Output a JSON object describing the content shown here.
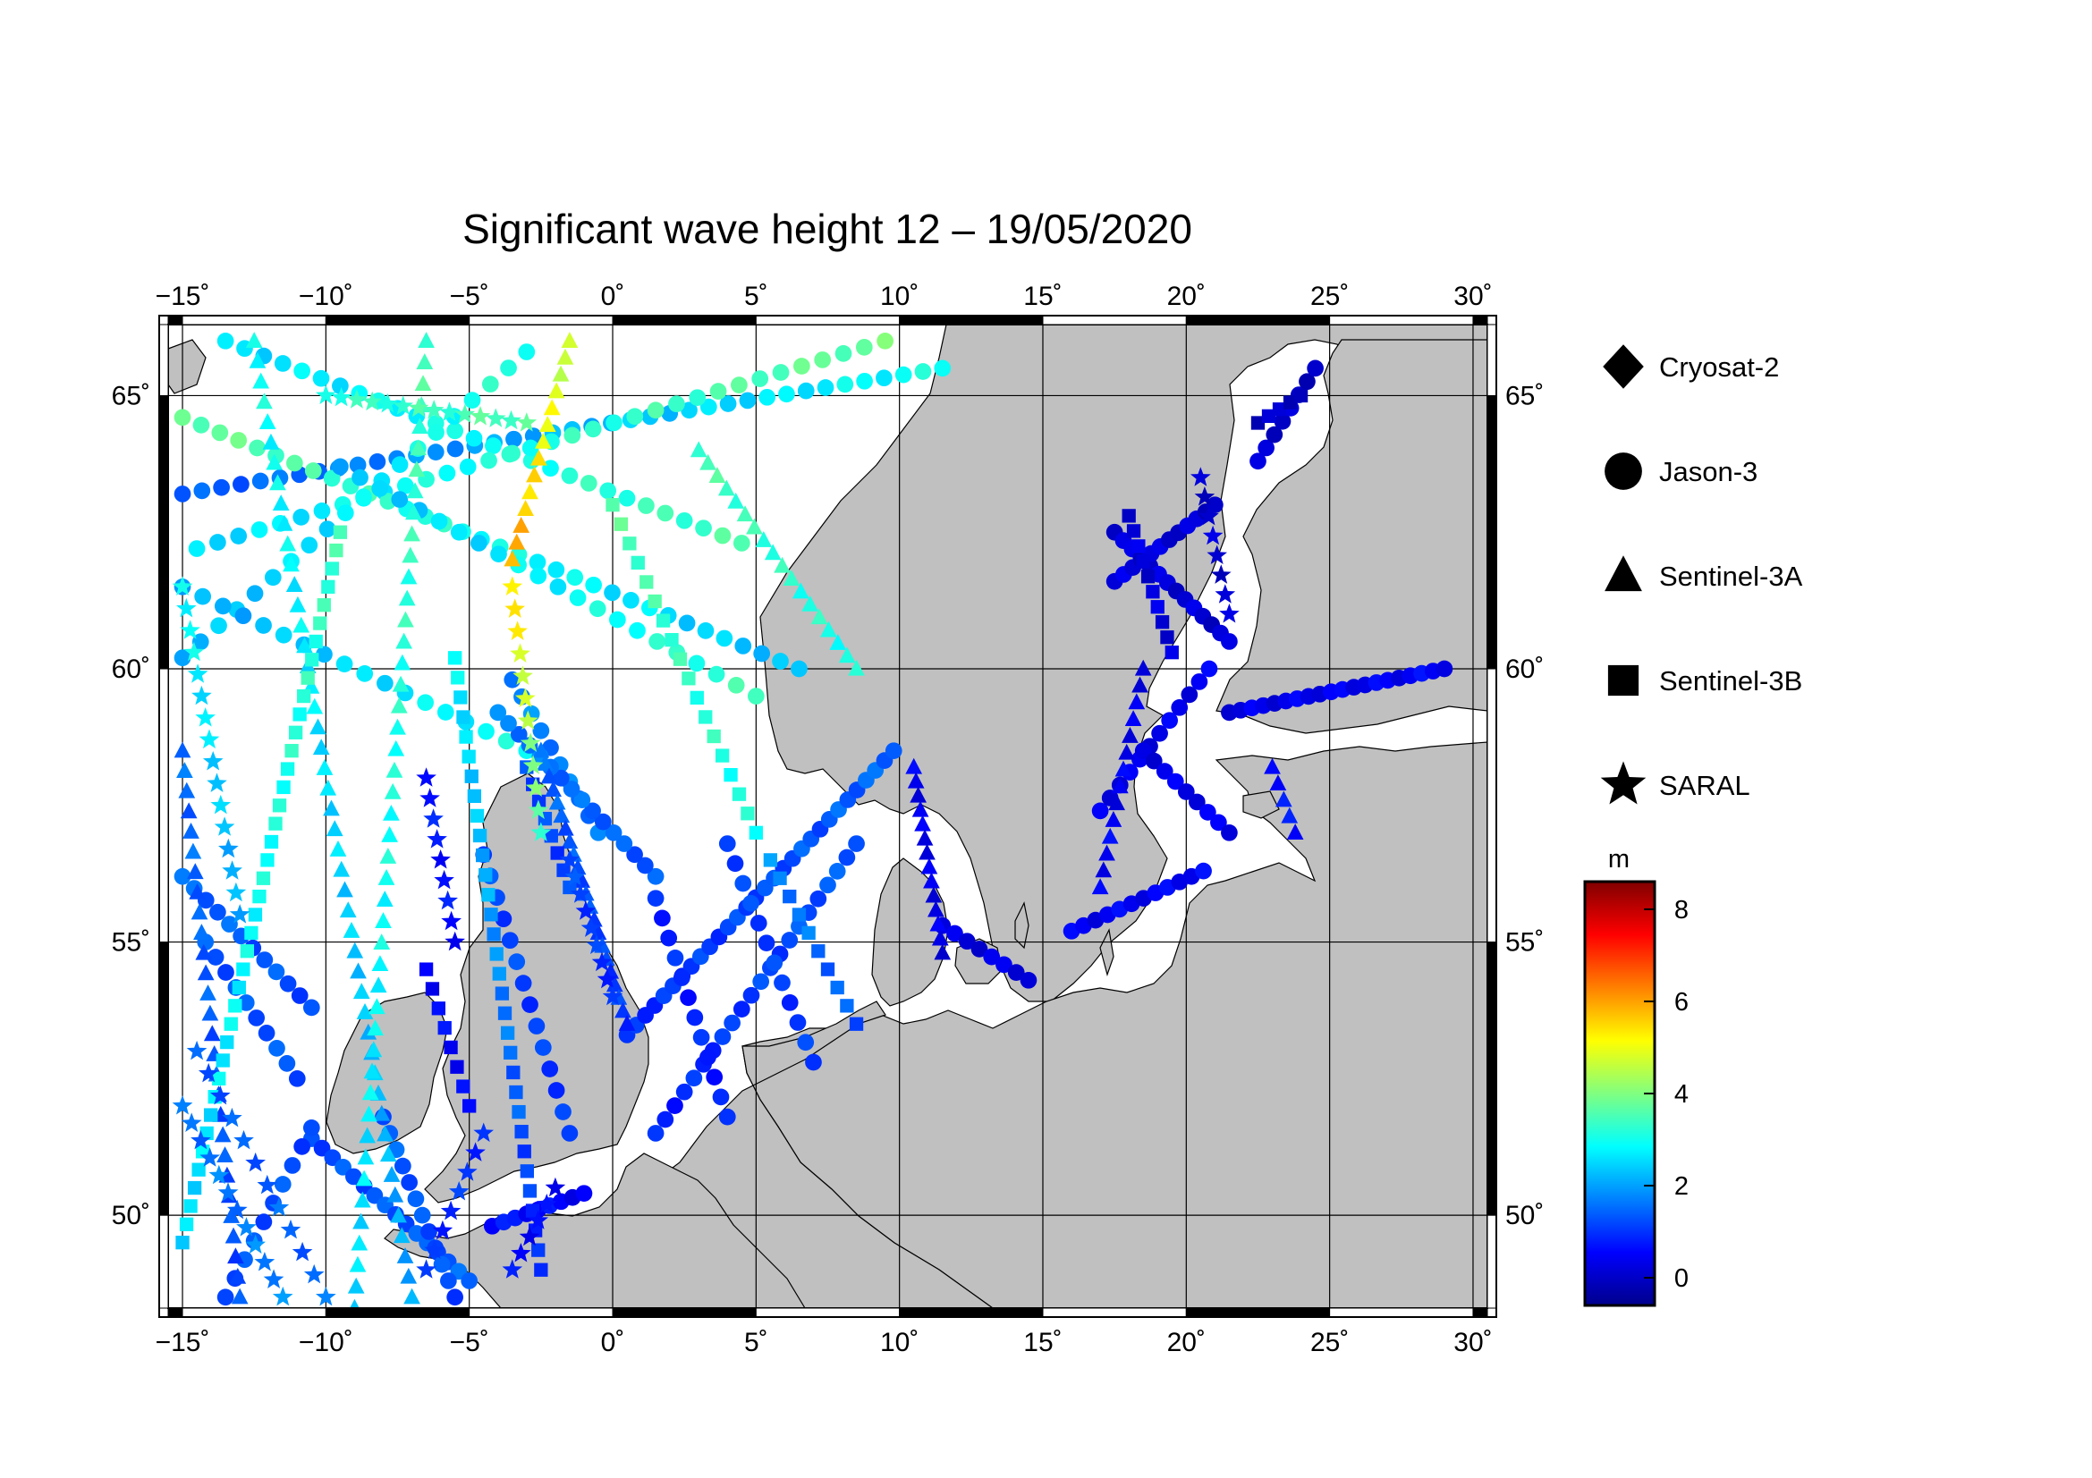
{
  "title": "Significant wave height 12 – 19/05/2020",
  "map": {
    "lon_range": [
      -15.5,
      30.5
    ],
    "lat_range": [
      48.3,
      66.3
    ],
    "lon_ticks": [
      {
        "value": -15,
        "label": "−15˚"
      },
      {
        "value": -10,
        "label": "−10˚"
      },
      {
        "value": -5,
        "label": "−5˚"
      },
      {
        "value": 0,
        "label": "0˚"
      },
      {
        "value": 5,
        "label": "5˚"
      },
      {
        "value": 10,
        "label": "10˚"
      },
      {
        "value": 15,
        "label": "15˚"
      },
      {
        "value": 20,
        "label": "20˚"
      },
      {
        "value": 25,
        "label": "25˚"
      },
      {
        "value": 30,
        "label": "30˚"
      }
    ],
    "lat_ticks": [
      {
        "value": 50,
        "label": "50˚"
      },
      {
        "value": 55,
        "label": "55˚"
      },
      {
        "value": 60,
        "label": "60˚"
      },
      {
        "value": 65,
        "label": "65˚"
      }
    ],
    "land_color": "#c0c0c0",
    "sea_color": "#ffffff",
    "grid": true
  },
  "legend": {
    "items": [
      {
        "name": "Cryosat-2",
        "marker": "diamond"
      },
      {
        "name": "Jason-3",
        "marker": "circle"
      },
      {
        "name": "Sentinel-3A",
        "marker": "triangle"
      },
      {
        "name": "Sentinel-3B",
        "marker": "square"
      },
      {
        "name": "SARAL",
        "marker": "star"
      }
    ]
  },
  "colorbar": {
    "unit": "m",
    "range": [
      -0.6,
      8.6
    ],
    "ticks": [
      {
        "value": 0,
        "label": "0"
      },
      {
        "value": 2,
        "label": "2"
      },
      {
        "value": 4,
        "label": "4"
      },
      {
        "value": 6,
        "label": "6"
      },
      {
        "value": 8,
        "label": "8"
      }
    ],
    "colors": [
      "#00008b",
      "#0000ff",
      "#0080ff",
      "#00ffff",
      "#80ff80",
      "#ffff00",
      "#ff8000",
      "#ff0000",
      "#800000"
    ]
  },
  "tracks": [
    {
      "satellite": "Jason-3",
      "marker": "circle",
      "from": [
        -15,
        63.2
      ],
      "to": [
        11.5,
        65.5
      ],
      "n": 40,
      "hs": [
        1.3,
        3.0
      ]
    },
    {
      "satellite": "Jason-3",
      "marker": "circle",
      "from": [
        -13.5,
        66.0
      ],
      "to": [
        4.5,
        62.3
      ],
      "n": 28,
      "hs": [
        2.5,
        3.5
      ]
    },
    {
      "satellite": "Jason-3",
      "marker": "circle",
      "from": [
        -14.5,
        62.2
      ],
      "to": [
        9.5,
        66.0
      ],
      "n": 34,
      "hs": [
        2.5,
        3.8
      ]
    },
    {
      "satellite": "Jason-3",
      "marker": "circle",
      "from": [
        -15,
        64.6
      ],
      "to": [
        6.5,
        60.0
      ],
      "n": 34,
      "hs": [
        3.8,
        2.2
      ]
    },
    {
      "satellite": "Jason-3",
      "marker": "circle",
      "from": [
        -15,
        60.2
      ],
      "to": [
        -3.0,
        65.8
      ],
      "n": 20,
      "hs": [
        2.2,
        3.2
      ]
    },
    {
      "satellite": "Jason-3",
      "marker": "circle",
      "from": [
        -9.5,
        63.7
      ],
      "to": [
        5.0,
        59.5
      ],
      "n": 22,
      "hs": [
        2.2,
        3.4
      ]
    },
    {
      "satellite": "Jason-3",
      "marker": "circle",
      "from": [
        -15,
        61.5
      ],
      "to": [
        -3.0,
        58.5
      ],
      "n": 18,
      "hs": [
        2.0,
        3.0
      ]
    },
    {
      "satellite": "Jason-3",
      "marker": "circle",
      "from": [
        -15,
        56.2
      ],
      "to": [
        -10.5,
        53.8
      ],
      "n": 12,
      "hs": [
        1.5,
        1.2
      ]
    },
    {
      "satellite": "Jason-3",
      "marker": "circle",
      "from": [
        -14.2,
        55.0
      ],
      "to": [
        -11.0,
        52.5
      ],
      "n": 10,
      "hs": [
        1.3,
        1.3
      ]
    },
    {
      "satellite": "Jason-3",
      "marker": "circle",
      "from": [
        -10.5,
        51.4
      ],
      "to": [
        -5.0,
        48.8
      ],
      "n": 16,
      "hs": [
        1.2,
        1.4
      ]
    },
    {
      "satellite": "Jason-3",
      "marker": "circle",
      "from": [
        -13.5,
        48.5
      ],
      "to": [
        -10.5,
        51.6
      ],
      "n": 10,
      "hs": [
        1.3,
        1.2
      ]
    },
    {
      "satellite": "Jason-3",
      "marker": "circle",
      "from": [
        -8.0,
        51.8
      ],
      "to": [
        -5.5,
        48.5
      ],
      "n": 12,
      "hs": [
        1.4,
        1.2
      ]
    },
    {
      "satellite": "Jason-3",
      "marker": "circle",
      "from": [
        -4.5,
        56.6
      ],
      "to": [
        -1.5,
        51.5
      ],
      "n": 14,
      "hs": [
        1.2,
        1.0
      ]
    },
    {
      "satellite": "Jason-3",
      "marker": "circle",
      "from": [
        0.5,
        53.3
      ],
      "to": [
        9.8,
        58.5
      ],
      "n": 30,
      "hs": [
        0.9,
        1.5
      ]
    },
    {
      "satellite": "Jason-3",
      "marker": "circle",
      "from": [
        1.5,
        51.5
      ],
      "to": [
        8.5,
        56.8
      ],
      "n": 22,
      "hs": [
        0.8,
        1.4
      ]
    },
    {
      "satellite": "Jason-3",
      "marker": "circle",
      "from": [
        1.5,
        55.8
      ],
      "to": [
        4.0,
        51.8
      ],
      "n": 12,
      "hs": [
        0.9,
        0.8
      ]
    },
    {
      "satellite": "Jason-3",
      "marker": "circle",
      "from": [
        4.0,
        56.8
      ],
      "to": [
        7.0,
        52.8
      ],
      "n": 12,
      "hs": [
        1.2,
        1.0
      ]
    },
    {
      "satellite": "Jason-3",
      "marker": "circle",
      "from": [
        -3.5,
        59.8
      ],
      "to": [
        -0.5,
        57.0
      ],
      "n": 10,
      "hs": [
        1.8,
        1.6
      ]
    },
    {
      "satellite": "Jason-3",
      "marker": "circle",
      "from": [
        -4.2,
        49.8
      ],
      "to": [
        -1.0,
        50.4
      ],
      "n": 9,
      "hs": [
        0.7,
        0.5
      ]
    },
    {
      "satellite": "Jason-3",
      "marker": "circle",
      "from": [
        11.5,
        55.3
      ],
      "to": [
        14.5,
        54.3
      ],
      "n": 8,
      "hs": [
        0.2,
        0.3
      ]
    },
    {
      "satellite": "Jason-3",
      "marker": "circle",
      "from": [
        16.0,
        55.2
      ],
      "to": [
        20.6,
        56.3
      ],
      "n": 12,
      "hs": [
        0.4,
        0.5
      ]
    },
    {
      "satellite": "Jason-3",
      "marker": "circle",
      "from": [
        17.0,
        57.4
      ],
      "to": [
        20.8,
        60.0
      ],
      "n": 12,
      "hs": [
        0.3,
        0.4
      ]
    },
    {
      "satellite": "Jason-3",
      "marker": "circle",
      "from": [
        18.5,
        58.5
      ],
      "to": [
        21.5,
        57.0
      ],
      "n": 9,
      "hs": [
        0.3,
        0.4
      ]
    },
    {
      "satellite": "Jason-3",
      "marker": "circle",
      "from": [
        21.5,
        59.2
      ],
      "to": [
        29.0,
        60.0
      ],
      "n": 20,
      "hs": [
        0.3,
        0.5
      ]
    },
    {
      "satellite": "Jason-3",
      "marker": "circle",
      "from": [
        17.5,
        62.5
      ],
      "to": [
        21.5,
        60.5
      ],
      "n": 14,
      "hs": [
        0.2,
        0.1
      ]
    },
    {
      "satellite": "Jason-3",
      "marker": "circle",
      "from": [
        17.5,
        61.6
      ],
      "to": [
        21.0,
        63.0
      ],
      "n": 12,
      "hs": [
        0.2,
        0.1
      ]
    },
    {
      "satellite": "Jason-3",
      "marker": "circle",
      "from": [
        22.5,
        63.8
      ],
      "to": [
        24.5,
        65.5
      ],
      "n": 8,
      "hs": [
        0.1,
        0.0
      ]
    },
    {
      "satellite": "Jason-3",
      "marker": "circle",
      "from": [
        1.5,
        56.2
      ],
      "to": [
        -4.0,
        59.2
      ],
      "n": 16,
      "hs": [
        1.3,
        1.7
      ]
    },
    {
      "satellite": "Sentinel-3A",
      "marker": "triangle",
      "from": [
        -12.5,
        66.0
      ],
      "to": [
        -7.0,
        48.5
      ],
      "n": 48,
      "hs": [
        3.0,
        2.0
      ]
    },
    {
      "satellite": "Sentinel-3A",
      "marker": "triangle",
      "from": [
        -9.0,
        48.3
      ],
      "to": [
        -6.5,
        66.0
      ],
      "n": 46,
      "hs": [
        2.5,
        3.5
      ]
    },
    {
      "satellite": "Sentinel-3A",
      "marker": "triangle",
      "from": [
        -3.5,
        62.0
      ],
      "to": [
        -1.5,
        66.0
      ],
      "n": 14,
      "hs": [
        6.0,
        4.5
      ]
    },
    {
      "satellite": "Sentinel-3A",
      "marker": "triangle",
      "from": [
        -15,
        58.5
      ],
      "to": [
        -13.0,
        48.5
      ],
      "n": 28,
      "hs": [
        1.5,
        1.2
      ]
    },
    {
      "satellite": "Sentinel-3A",
      "marker": "triangle",
      "from": [
        -2.5,
        58.5
      ],
      "to": [
        0.5,
        53.5
      ],
      "n": 22,
      "hs": [
        1.5,
        1.0
      ]
    },
    {
      "satellite": "Sentinel-3A",
      "marker": "triangle",
      "from": [
        10.5,
        58.2
      ],
      "to": [
        11.5,
        54.8
      ],
      "n": 14,
      "hs": [
        0.4,
        0.3
      ]
    },
    {
      "satellite": "Sentinel-3A",
      "marker": "triangle",
      "from": [
        17.0,
        56.0
      ],
      "to": [
        18.5,
        60.0
      ],
      "n": 14,
      "hs": [
        0.5,
        0.3
      ]
    },
    {
      "satellite": "Sentinel-3A",
      "marker": "triangle",
      "from": [
        23.0,
        58.2
      ],
      "to": [
        23.8,
        57.0
      ],
      "n": 5,
      "hs": [
        0.7,
        0.7
      ]
    },
    {
      "satellite": "Sentinel-3A",
      "marker": "triangle",
      "from": [
        3.0,
        64.0
      ],
      "to": [
        8.5,
        60.0
      ],
      "n": 18,
      "hs": [
        3.5,
        3.0
      ]
    },
    {
      "satellite": "Sentinel-3B",
      "marker": "square",
      "from": [
        -15,
        49.5
      ],
      "to": [
        -9.5,
        62.5
      ],
      "n": 40,
      "hs": [
        2.5,
        3.4
      ]
    },
    {
      "satellite": "Sentinel-3B",
      "marker": "square",
      "from": [
        -5.5,
        60.2
      ],
      "to": [
        -2.5,
        49.0
      ],
      "n": 32,
      "hs": [
        2.8,
        0.8
      ]
    },
    {
      "satellite": "Sentinel-3B",
      "marker": "square",
      "from": [
        5.5,
        56.5
      ],
      "to": [
        8.5,
        53.5
      ],
      "n": 10,
      "hs": [
        1.8,
        1.3
      ]
    },
    {
      "satellite": "Sentinel-3B",
      "marker": "square",
      "from": [
        -3.0,
        58.2
      ],
      "to": [
        -1.5,
        56.0
      ],
      "n": 8,
      "hs": [
        1.2,
        1.1
      ]
    },
    {
      "satellite": "Sentinel-3B",
      "marker": "square",
      "from": [
        -6.5,
        54.5
      ],
      "to": [
        -5.0,
        52.0
      ],
      "n": 8,
      "hs": [
        0.6,
        0.5
      ]
    },
    {
      "satellite": "Sentinel-3B",
      "marker": "square",
      "from": [
        18.0,
        62.8
      ],
      "to": [
        19.5,
        60.3
      ],
      "n": 10,
      "hs": [
        0.2,
        0.2
      ]
    },
    {
      "satellite": "Sentinel-3B",
      "marker": "square",
      "from": [
        22.5,
        64.5
      ],
      "to": [
        24.0,
        65.0
      ],
      "n": 5,
      "hs": [
        0.0,
        0.0
      ]
    },
    {
      "satellite": "Sentinel-3B",
      "marker": "square",
      "from": [
        0.0,
        63.0
      ],
      "to": [
        5.0,
        57.0
      ],
      "n": 18,
      "hs": [
        3.6,
        3.0
      ]
    },
    {
      "satellite": "SARAL",
      "marker": "star",
      "from": [
        -15,
        52.0
      ],
      "to": [
        -11.5,
        48.5
      ],
      "n": 12,
      "hs": [
        1.5,
        1.8
      ]
    },
    {
      "satellite": "SARAL",
      "marker": "star",
      "from": [
        -14.5,
        53.0
      ],
      "to": [
        -10.0,
        48.5
      ],
      "n": 12,
      "hs": [
        1.3,
        1.5
      ]
    },
    {
      "satellite": "SARAL",
      "marker": "star",
      "from": [
        -15,
        61.5
      ],
      "to": [
        -13.0,
        55.5
      ],
      "n": 16,
      "hs": [
        3.0,
        2.0
      ]
    },
    {
      "satellite": "SARAL",
      "marker": "star",
      "from": [
        -6.5,
        58.0
      ],
      "to": [
        -5.5,
        55.0
      ],
      "n": 9,
      "hs": [
        0.8,
        0.6
      ]
    },
    {
      "satellite": "SARAL",
      "marker": "star",
      "from": [
        -3.5,
        61.5
      ],
      "to": [
        -2.5,
        57.0
      ],
      "n": 12,
      "hs": [
        5.5,
        3.5
      ]
    },
    {
      "satellite": "SARAL",
      "marker": "star",
      "from": [
        -1.5,
        56.5
      ],
      "to": [
        0.0,
        54.0
      ],
      "n": 9,
      "hs": [
        1.2,
        0.9
      ]
    },
    {
      "satellite": "SARAL",
      "marker": "star",
      "from": [
        -6.5,
        49.0
      ],
      "to": [
        -4.5,
        51.5
      ],
      "n": 8,
      "hs": [
        0.9,
        1.0
      ]
    },
    {
      "satellite": "SARAL",
      "marker": "star",
      "from": [
        -3.5,
        49.0
      ],
      "to": [
        -2.0,
        50.5
      ],
      "n": 6,
      "hs": [
        0.6,
        0.5
      ]
    },
    {
      "satellite": "SARAL",
      "marker": "star",
      "from": [
        20.5,
        63.5
      ],
      "to": [
        21.5,
        61.0
      ],
      "n": 8,
      "hs": [
        0.1,
        0.1
      ]
    },
    {
      "satellite": "SARAL",
      "marker": "star",
      "from": [
        -10.0,
        65.0
      ],
      "to": [
        -3.0,
        64.5
      ],
      "n": 14,
      "hs": [
        3.2,
        3.6
      ]
    }
  ]
}
